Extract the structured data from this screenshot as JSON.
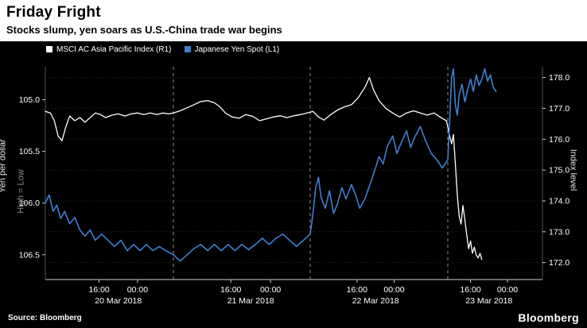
{
  "header": {
    "title": "Friday Fright",
    "subtitle": "Stocks slump, yen soars as U.S.-China trade war begins"
  },
  "footer": {
    "source": "Source: Bloomberg",
    "logo": "Bloomberg"
  },
  "chart_data": {
    "type": "line",
    "title": "Friday Fright",
    "subtitle": "Stocks slump, yen soars as U.S.-China trade war begins",
    "background": "#000000",
    "legend_position": "top-left",
    "grid": "dashed vertical day separators, faint dotted horizontal lines",
    "series": [
      {
        "name": "MSCI AC Asia Pacific Index (R1)",
        "axis": "right",
        "color": "#ffffff",
        "points": [
          [
            0.0,
            176.9
          ],
          [
            0.04,
            176.85
          ],
          [
            0.07,
            176.6
          ],
          [
            0.1,
            176.1
          ],
          [
            0.13,
            175.95
          ],
          [
            0.16,
            176.4
          ],
          [
            0.19,
            176.75
          ],
          [
            0.23,
            176.6
          ],
          [
            0.27,
            176.7
          ],
          [
            0.31,
            176.55
          ],
          [
            0.35,
            176.7
          ],
          [
            0.39,
            176.85
          ],
          [
            0.43,
            176.8
          ],
          [
            0.47,
            176.7
          ],
          [
            0.52,
            176.78
          ],
          [
            0.57,
            176.82
          ],
          [
            0.62,
            176.75
          ],
          [
            0.67,
            176.82
          ],
          [
            0.72,
            176.85
          ],
          [
            0.77,
            176.8
          ],
          [
            0.82,
            176.85
          ],
          [
            0.87,
            176.8
          ],
          [
            0.92,
            176.85
          ],
          [
            0.96,
            176.82
          ],
          [
            1.0,
            176.85
          ],
          [
            1.05,
            176.92
          ],
          [
            1.1,
            177.02
          ],
          [
            1.15,
            177.12
          ],
          [
            1.2,
            177.22
          ],
          [
            1.25,
            177.25
          ],
          [
            1.3,
            177.18
          ],
          [
            1.34,
            177.05
          ],
          [
            1.38,
            176.85
          ],
          [
            1.43,
            176.72
          ],
          [
            1.48,
            176.68
          ],
          [
            1.53,
            176.8
          ],
          [
            1.58,
            176.74
          ],
          [
            1.63,
            176.6
          ],
          [
            1.68,
            176.66
          ],
          [
            1.73,
            176.72
          ],
          [
            1.78,
            176.76
          ],
          [
            1.83,
            176.7
          ],
          [
            1.88,
            176.76
          ],
          [
            1.93,
            176.8
          ],
          [
            1.97,
            176.84
          ],
          [
            2.02,
            176.9
          ],
          [
            2.06,
            176.72
          ],
          [
            2.1,
            176.62
          ],
          [
            2.15,
            176.8
          ],
          [
            2.2,
            176.95
          ],
          [
            2.25,
            177.05
          ],
          [
            2.3,
            177.12
          ],
          [
            2.35,
            177.35
          ],
          [
            2.4,
            177.7
          ],
          [
            2.43,
            178.0
          ],
          [
            2.46,
            177.6
          ],
          [
            2.5,
            177.25
          ],
          [
            2.55,
            177.0
          ],
          [
            2.6,
            176.85
          ],
          [
            2.65,
            176.72
          ],
          [
            2.7,
            176.85
          ],
          [
            2.75,
            176.92
          ],
          [
            2.8,
            176.85
          ],
          [
            2.85,
            176.78
          ],
          [
            2.9,
            176.85
          ],
          [
            2.95,
            176.7
          ],
          [
            2.99,
            176.6
          ],
          [
            3.02,
            176.1
          ],
          [
            3.04,
            175.85
          ],
          [
            3.06,
            176.15
          ],
          [
            3.08,
            175.2
          ],
          [
            3.1,
            174.2
          ],
          [
            3.12,
            173.5
          ],
          [
            3.14,
            173.25
          ],
          [
            3.16,
            173.85
          ],
          [
            3.18,
            173.4
          ],
          [
            3.2,
            172.9
          ],
          [
            3.22,
            172.45
          ],
          [
            3.24,
            172.7
          ],
          [
            3.26,
            172.3
          ],
          [
            3.28,
            172.5
          ],
          [
            3.3,
            172.25
          ],
          [
            3.32,
            172.15
          ],
          [
            3.34,
            172.3
          ],
          [
            3.36,
            172.1
          ]
        ]
      },
      {
        "name": "Japanese Yen Spot (L1)",
        "axis": "left",
        "color": "#3f80cf",
        "points": [
          [
            0.0,
            106.0
          ],
          [
            0.03,
            105.92
          ],
          [
            0.06,
            106.08
          ],
          [
            0.09,
            106.02
          ],
          [
            0.12,
            106.15
          ],
          [
            0.15,
            106.08
          ],
          [
            0.19,
            106.2
          ],
          [
            0.23,
            106.14
          ],
          [
            0.27,
            106.26
          ],
          [
            0.31,
            106.32
          ],
          [
            0.35,
            106.26
          ],
          [
            0.39,
            106.36
          ],
          [
            0.44,
            106.3
          ],
          [
            0.49,
            106.36
          ],
          [
            0.54,
            106.42
          ],
          [
            0.59,
            106.36
          ],
          [
            0.64,
            106.46
          ],
          [
            0.69,
            106.4
          ],
          [
            0.74,
            106.46
          ],
          [
            0.79,
            106.4
          ],
          [
            0.84,
            106.46
          ],
          [
            0.89,
            106.42
          ],
          [
            0.94,
            106.46
          ],
          [
            1.0,
            106.5
          ],
          [
            1.05,
            106.56
          ],
          [
            1.1,
            106.5
          ],
          [
            1.15,
            106.44
          ],
          [
            1.2,
            106.4
          ],
          [
            1.25,
            106.46
          ],
          [
            1.3,
            106.4
          ],
          [
            1.35,
            106.46
          ],
          [
            1.4,
            106.4
          ],
          [
            1.45,
            106.46
          ],
          [
            1.5,
            106.4
          ],
          [
            1.55,
            106.45
          ],
          [
            1.6,
            106.4
          ],
          [
            1.65,
            106.34
          ],
          [
            1.7,
            106.4
          ],
          [
            1.75,
            106.34
          ],
          [
            1.8,
            106.3
          ],
          [
            1.85,
            106.36
          ],
          [
            1.9,
            106.42
          ],
          [
            1.95,
            106.36
          ],
          [
            2.0,
            106.3
          ],
          [
            2.02,
            106.1
          ],
          [
            2.04,
            105.85
          ],
          [
            2.06,
            105.75
          ],
          [
            2.08,
            105.95
          ],
          [
            2.11,
            106.05
          ],
          [
            2.14,
            105.88
          ],
          [
            2.17,
            106.1
          ],
          [
            2.2,
            106.0
          ],
          [
            2.23,
            105.85
          ],
          [
            2.26,
            105.96
          ],
          [
            2.3,
            105.82
          ],
          [
            2.33,
            105.92
          ],
          [
            2.36,
            106.05
          ],
          [
            2.4,
            105.95
          ],
          [
            2.44,
            105.8
          ],
          [
            2.47,
            105.68
          ],
          [
            2.5,
            105.55
          ],
          [
            2.53,
            105.62
          ],
          [
            2.56,
            105.45
          ],
          [
            2.6,
            105.35
          ],
          [
            2.63,
            105.52
          ],
          [
            2.66,
            105.42
          ],
          [
            2.7,
            105.3
          ],
          [
            2.73,
            105.46
          ],
          [
            2.76,
            105.36
          ],
          [
            2.8,
            105.26
          ],
          [
            2.84,
            105.4
          ],
          [
            2.88,
            105.52
          ],
          [
            2.92,
            105.58
          ],
          [
            2.96,
            105.66
          ],
          [
            3.0,
            105.58
          ],
          [
            3.02,
            105.2
          ],
          [
            3.04,
            104.78
          ],
          [
            3.06,
            104.7
          ],
          [
            3.08,
            105.05
          ],
          [
            3.1,
            105.15
          ],
          [
            3.12,
            104.95
          ],
          [
            3.15,
            104.85
          ],
          [
            3.18,
            105.02
          ],
          [
            3.21,
            104.9
          ],
          [
            3.24,
            104.8
          ],
          [
            3.27,
            104.92
          ],
          [
            3.3,
            104.76
          ],
          [
            3.33,
            104.86
          ],
          [
            3.36,
            104.8
          ],
          [
            3.39,
            104.7
          ],
          [
            3.42,
            104.82
          ],
          [
            3.45,
            104.76
          ],
          [
            3.48,
            104.88
          ],
          [
            3.51,
            104.92
          ]
        ]
      }
    ],
    "left_axis": {
      "title": "Yen per dollar",
      "note": "High = Low",
      "inverted": true,
      "ticks": [
        105.0,
        105.5,
        106.0,
        106.5
      ],
      "range": [
        104.68,
        106.74
      ]
    },
    "right_axis": {
      "title": "Index level",
      "ticks": [
        178.0,
        177.0,
        176.0,
        175.0,
        174.0,
        173.0,
        172.0
      ],
      "range": [
        171.45,
        178.35
      ]
    },
    "x_axis": {
      "unit": "trading days",
      "dates": [
        "20 Mar 2018",
        "21 Mar 2018",
        "22 Mar 2018",
        "23 Mar 2018"
      ],
      "time_ticks": [
        "16:00",
        "00:00"
      ],
      "tick_fractions": [
        [
          0.42,
          0.72
        ],
        [
          0.42,
          0.71
        ],
        [
          0.34,
          0.61
        ],
        [
          0.24,
          0.63
        ]
      ]
    }
  }
}
